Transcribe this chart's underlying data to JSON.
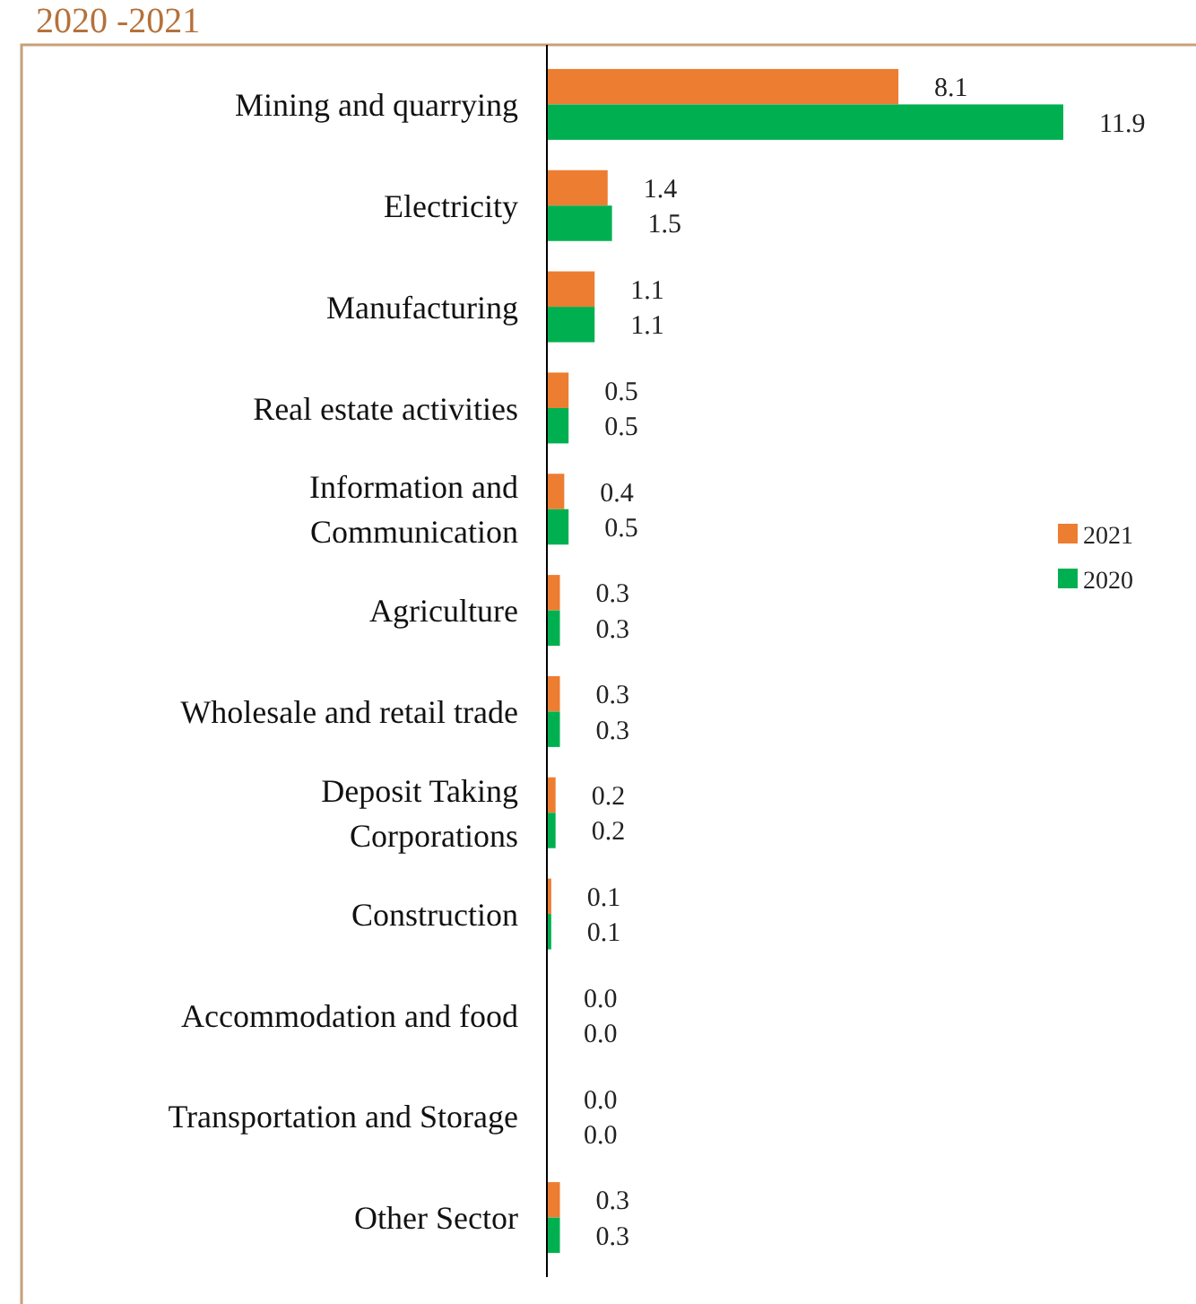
{
  "chart_data": {
    "type": "bar",
    "orientation": "horizontal",
    "title": "2020 -2021",
    "categories": [
      "Mining and quarrying",
      "Electricity",
      "Manufacturing",
      "Real estate activities",
      "Information and Communication",
      "Agriculture",
      "Wholesale and retail trade",
      "Deposit Taking Corporations",
      "Construction",
      "Accommodation and food",
      "Transportation and Storage",
      "Other Sector"
    ],
    "series": [
      {
        "name": "2021",
        "color": "#ed7d31",
        "values": [
          8.1,
          1.4,
          1.1,
          0.5,
          0.4,
          0.3,
          0.3,
          0.2,
          0.1,
          0.02,
          0.02,
          0.3
        ],
        "value_labels": [
          "8.1",
          "1.4",
          "1.1",
          "0.5",
          "0.4",
          "0.3",
          "0.3",
          "0.2",
          "0.1",
          "0.0",
          "0.0",
          "0.3"
        ]
      },
      {
        "name": "2020",
        "color": "#00b050",
        "values": [
          11.9,
          1.5,
          1.1,
          0.5,
          0.5,
          0.3,
          0.3,
          0.2,
          0.1,
          0.02,
          0.02,
          0.3
        ],
        "value_labels": [
          "11.9",
          "1.5",
          "1.1",
          "0.5",
          "0.5",
          "0.3",
          "0.3",
          "0.2",
          "0.1",
          "0.0",
          "0.0",
          "0.3"
        ]
      }
    ],
    "tick_labels": "y",
    "legend": "right"
  }
}
